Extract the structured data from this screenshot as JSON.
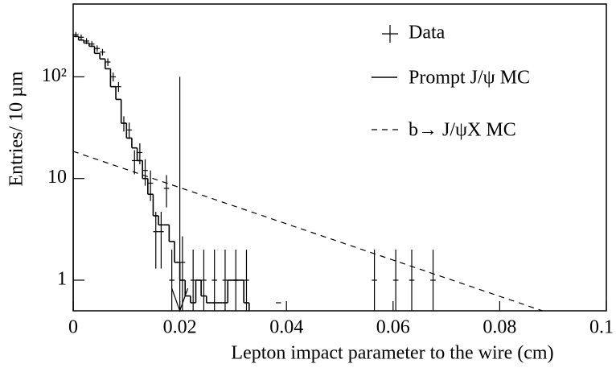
{
  "chart_data": {
    "type": "hist-log",
    "x_label": "Lepton impact parameter to the wire  (cm)",
    "y_label": "Entries/ 10 µm",
    "xlim": [
      0,
      0.1
    ],
    "ylim": [
      0.5,
      520
    ],
    "log_y": true,
    "xticks": [
      0,
      0.02,
      0.04,
      0.06,
      0.08,
      0.1
    ],
    "yticks": [
      1,
      10,
      {
        "value": 100,
        "label": "10²"
      }
    ],
    "cut_line": {
      "x": 0.02,
      "top": 100
    },
    "data": {
      "name": "Data",
      "color": "#000000",
      "x": [
        0.0005,
        0.0015,
        0.0025,
        0.0035,
        0.0045,
        0.0055,
        0.0065,
        0.0075,
        0.0085,
        0.0095,
        0.0105,
        0.0115,
        0.0125,
        0.0135,
        0.0145,
        0.0155,
        0.0165,
        0.0175,
        0.0185,
        0.0205,
        0.0225,
        0.0245,
        0.0265,
        0.0285,
        0.0305,
        0.0325,
        0.0385,
        0.0565,
        0.0605,
        0.0635,
        0.0675
      ],
      "values": [
        260,
        245,
        225,
        210,
        190,
        175,
        140,
        100,
        80,
        35,
        30,
        15,
        18,
        12,
        9,
        3,
        3,
        8,
        1,
        1.5,
        1,
        1,
        1,
        1,
        1,
        1,
        0.6,
        1,
        1,
        1,
        1
      ],
      "errors": [
        16,
        16,
        15,
        14,
        14,
        13,
        12,
        10,
        9,
        6,
        5.5,
        4,
        4.2,
        3.5,
        3,
        1.7,
        1.7,
        2.8,
        1,
        1.2,
        1,
        1,
        1,
        1,
        1,
        1,
        0,
        1,
        1,
        1,
        1
      ]
    },
    "prompt": {
      "name": "Prompt J/ψ MC",
      "color": "#000000",
      "bins": [
        0,
        0.001,
        0.002,
        0.003,
        0.004,
        0.005,
        0.006,
        0.007,
        0.008,
        0.009,
        0.01,
        0.011,
        0.012,
        0.013,
        0.014,
        0.015,
        0.016,
        0.017,
        0.018,
        0.019,
        0.02,
        0.021,
        0.022,
        0.023,
        0.024,
        0.025,
        0.026,
        0.027,
        0.028,
        0.029,
        0.03,
        0.031,
        0.032,
        0.033
      ],
      "values": [
        250,
        230,
        215,
        200,
        170,
        150,
        120,
        80,
        60,
        35,
        25,
        20,
        15,
        10,
        7,
        4.3,
        3.5,
        3.5,
        2.4,
        1.5,
        1,
        0.7,
        0.6,
        1,
        0.7,
        0.6,
        0.6,
        0.6,
        0.6,
        1,
        1,
        1,
        0.6
      ]
    },
    "bx": {
      "name": "b→ J/ψX MC",
      "color": "#000000",
      "x": [
        0,
        0.088
      ],
      "values": [
        18.5,
        0.5
      ]
    }
  }
}
